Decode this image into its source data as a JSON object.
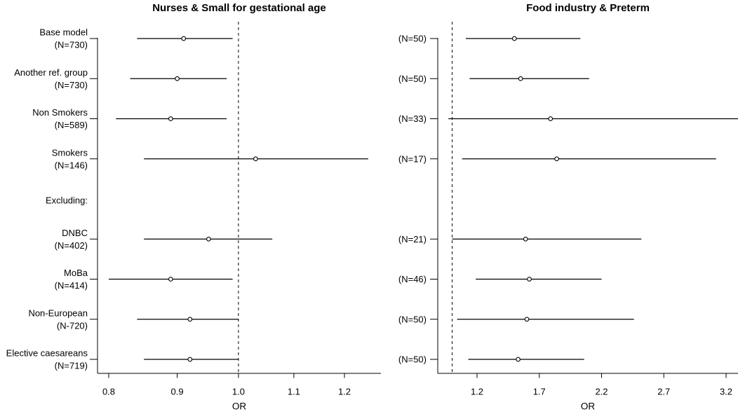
{
  "figure": {
    "background": "#ffffff"
  },
  "colors": {
    "line": "#000000",
    "text": "#000000",
    "marker_fill": "#ffffff"
  },
  "chart_data": [
    {
      "type": "forest",
      "panel": "left",
      "title": "Nurses & Small for gestational age",
      "xlabel": "OR",
      "x_scale": "log",
      "xlim": [
        0.785,
        1.278
      ],
      "x_ticks": [
        0.8,
        0.9,
        1.0,
        1.1,
        1.2
      ],
      "x_tick_labels": [
        "0.8",
        "0.9",
        "1.0",
        "1.1",
        "1.2"
      ],
      "ref_line": 1.0,
      "grid": false,
      "rows": [
        {
          "label": "Base model",
          "n_label": "(N=730)",
          "or": 0.91,
          "ci_low": 0.84,
          "ci_high": 0.99
        },
        {
          "label": "Another ref. group",
          "n_label": "(N=730)",
          "or": 0.9,
          "ci_low": 0.83,
          "ci_high": 0.98
        },
        {
          "label": "Non Smokers",
          "n_label": "(N=589)",
          "or": 0.89,
          "ci_low": 0.81,
          "ci_high": 0.98
        },
        {
          "label": "Smokers",
          "n_label": "(N=146)",
          "or": 1.03,
          "ci_low": 0.85,
          "ci_high": 1.25
        },
        {
          "label": "Excluding:",
          "n_label": "",
          "or": null,
          "ci_low": null,
          "ci_high": null
        },
        {
          "label": "DNBC",
          "n_label": "(N=402)",
          "or": 0.95,
          "ci_low": 0.85,
          "ci_high": 1.06
        },
        {
          "label": "MoBa",
          "n_label": "(N=414)",
          "or": 0.89,
          "ci_low": 0.8,
          "ci_high": 0.99
        },
        {
          "label": "Non-European",
          "n_label": "(N-720)",
          "or": 0.92,
          "ci_low": 0.84,
          "ci_high": 1.0
        },
        {
          "label": "Elective caesareans",
          "n_label": "(N=719)",
          "or": 0.92,
          "ci_low": 0.85,
          "ci_high": 1.0
        }
      ]
    },
    {
      "type": "forest",
      "panel": "right",
      "title": "Food industry & Preterm",
      "xlabel": "OR",
      "x_scale": "linear",
      "xlim": [
        0.885,
        3.296
      ],
      "x_ticks": [
        1.2,
        1.7,
        2.2,
        2.7,
        3.2
      ],
      "x_tick_labels": [
        "1.2",
        "1.7",
        "2.2",
        "2.7",
        "3.2"
      ],
      "ref_line": 1.0,
      "grid": false,
      "rows": [
        {
          "label": "",
          "n_label": "(N=50)",
          "or": 1.5,
          "ci_low": 1.11,
          "ci_high": 2.03
        },
        {
          "label": "",
          "n_label": "(N=50)",
          "or": 1.55,
          "ci_low": 1.14,
          "ci_high": 2.1
        },
        {
          "label": "",
          "n_label": "(N=33)",
          "or": 1.79,
          "ci_low": 0.97,
          "ci_high": 3.3,
          "ci_high_clipped": true
        },
        {
          "label": "",
          "n_label": "(N=17)",
          "or": 1.84,
          "ci_low": 1.08,
          "ci_high": 3.12
        },
        {
          "label": "",
          "n_label": "",
          "or": null,
          "ci_low": null,
          "ci_high": null
        },
        {
          "label": "",
          "n_label": "(N=21)",
          "or": 1.59,
          "ci_low": 1.0,
          "ci_high": 2.52
        },
        {
          "label": "",
          "n_label": "(N=46)",
          "or": 1.62,
          "ci_low": 1.19,
          "ci_high": 2.2
        },
        {
          "label": "",
          "n_label": "(N=50)",
          "or": 1.6,
          "ci_low": 1.04,
          "ci_high": 2.46
        },
        {
          "label": "",
          "n_label": "(N=50)",
          "or": 1.53,
          "ci_low": 1.13,
          "ci_high": 2.06
        }
      ]
    }
  ]
}
